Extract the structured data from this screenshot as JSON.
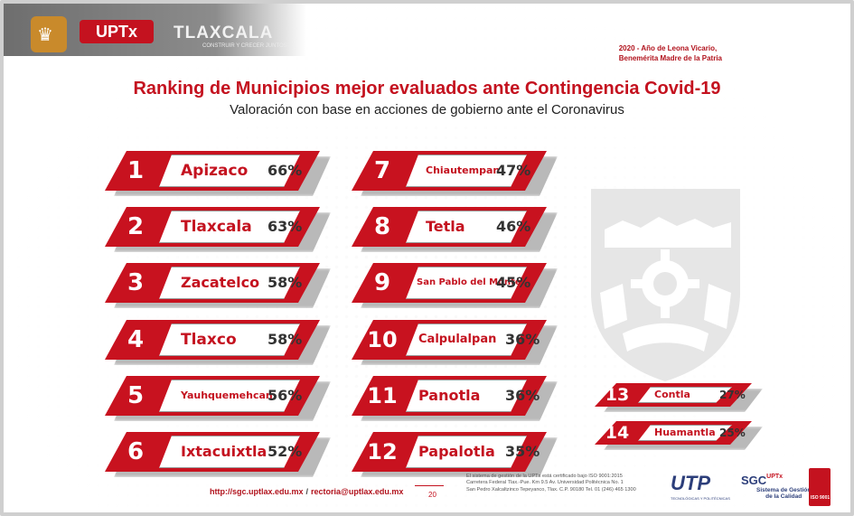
{
  "header": {
    "logo_uptx": "UPTx",
    "logo_tlaxcala": "TLAXCALA",
    "logo_tlaxcala_sub": "CONSTRUIR Y CRECER JUNTOS",
    "motto_line1": "2020 - Año de Leona Vicario,",
    "motto_line2": "Benemérita Madre de la Patria"
  },
  "title": "Ranking de Municipios mejor evaluados ante Contingencia Covid-19",
  "subtitle": "Valoración con base en acciones de gobierno ante el Coronavirus",
  "ranking": [
    {
      "rank": "1",
      "name": "Apizaco",
      "pct": "66%"
    },
    {
      "rank": "2",
      "name": "Tlaxcala",
      "pct": "63%"
    },
    {
      "rank": "3",
      "name": "Zacatelco",
      "pct": "58%"
    },
    {
      "rank": "4",
      "name": "Tlaxco",
      "pct": "58%"
    },
    {
      "rank": "5",
      "name": "Yauhquemehcan",
      "pct": "56%"
    },
    {
      "rank": "6",
      "name": "Ixtacuixtla",
      "pct": "52%"
    },
    {
      "rank": "7",
      "name": "Chiautempan",
      "pct": "47%"
    },
    {
      "rank": "8",
      "name": "Tetla",
      "pct": "46%"
    },
    {
      "rank": "9",
      "name": "San Pablo del Monte",
      "pct": "45%"
    },
    {
      "rank": "10",
      "name": "Calpulalpan",
      "pct": "36%"
    },
    {
      "rank": "11",
      "name": "Panotla",
      "pct": "36%"
    },
    {
      "rank": "12",
      "name": "Papalotla",
      "pct": "35%"
    },
    {
      "rank": "13",
      "name": "Contla",
      "pct": "27%"
    },
    {
      "rank": "14",
      "name": "Huamantla",
      "pct": "25%"
    }
  ],
  "footer": {
    "link1": "http://sgc.uptlax.edu.mx",
    "separator": "/",
    "link2": "rectoria@uptlax.edu.mx",
    "page": "20",
    "cert_line1": "El sistema de gestión de la UPTx está certificado bajo ISO 9001:2015",
    "cert_line2": "Carretera Federal Tlax.-Pue. Km 9.5 Av. Universidad Politécnica No. 1",
    "cert_line3": "San Pedro Xalcaltzinco Tepeyanco, Tlax. C.P. 90180 Tel. 01 (246) 465 1300",
    "logo_utp": "UTP",
    "logo_utp_sub": "TECNOLÓGICAS Y POLITÉCNICAS",
    "logo_sgc": "SGC",
    "logo_sgc_uptx": "UPTx",
    "logo_sgc_sub1": "Sistema de Gestión",
    "logo_sgc_sub2": "de la Calidad",
    "logo_iso": "ISO 9001"
  },
  "colors": {
    "accent": "#c4121f",
    "shadow": "#b9b9b9"
  }
}
